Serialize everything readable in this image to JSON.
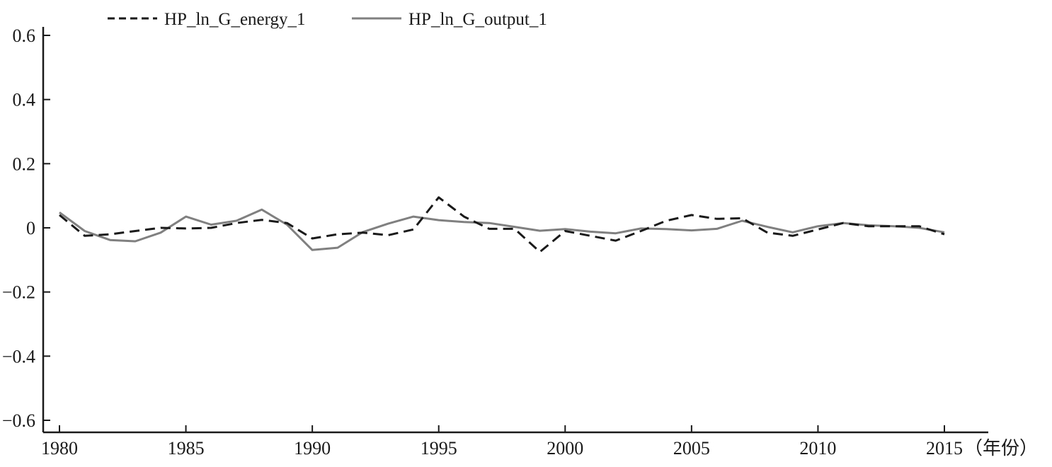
{
  "chart_data": {
    "type": "line",
    "x_unit_label": "（年份）",
    "x_ticks": [
      1980,
      1985,
      1990,
      1995,
      2000,
      2005,
      2010,
      2015
    ],
    "y_ticks": [
      "−0.6",
      "−0.4",
      "−0.2",
      "0",
      "0.2",
      "0.4",
      "0.6"
    ],
    "y_tick_values": [
      -0.6,
      -0.4,
      -0.2,
      0,
      0.2,
      0.4,
      0.6
    ],
    "xlim": [
      1980,
      2015
    ],
    "ylim": [
      -0.6,
      0.6
    ],
    "grid": false,
    "legend_position": "top-left",
    "x": [
      1980,
      1981,
      1982,
      1983,
      1984,
      1985,
      1986,
      1987,
      1988,
      1989,
      1990,
      1991,
      1992,
      1993,
      1994,
      1995,
      1996,
      1997,
      1998,
      1999,
      2000,
      2001,
      2002,
      2003,
      2004,
      2005,
      2006,
      2007,
      2008,
      2009,
      2010,
      2011,
      2012,
      2013,
      2014,
      2015
    ],
    "series": [
      {
        "name": "HP_ln_G_energy_1",
        "style": "dashed",
        "color": "#1a1a1a",
        "values": [
          0.04,
          -0.025,
          -0.02,
          -0.01,
          0.0,
          -0.002,
          0.0,
          0.015,
          0.025,
          0.015,
          -0.033,
          -0.02,
          -0.015,
          -0.023,
          -0.005,
          0.095,
          0.035,
          -0.003,
          -0.003,
          -0.075,
          -0.01,
          -0.025,
          -0.04,
          -0.01,
          0.022,
          0.04,
          0.028,
          0.03,
          -0.015,
          -0.025,
          -0.005,
          0.015,
          0.005,
          0.005,
          0.005,
          -0.02
        ]
      },
      {
        "name": "HP_ln_G_output_1",
        "style": "solid",
        "color": "#808080",
        "values": [
          0.048,
          -0.01,
          -0.038,
          -0.042,
          -0.015,
          0.035,
          0.01,
          0.022,
          0.057,
          0.01,
          -0.069,
          -0.062,
          -0.013,
          0.013,
          0.035,
          0.024,
          0.018,
          0.015,
          0.003,
          -0.009,
          -0.004,
          -0.012,
          -0.017,
          -0.002,
          -0.004,
          -0.008,
          -0.003,
          0.022,
          0.003,
          -0.014,
          0.005,
          0.015,
          0.008,
          0.005,
          0.0,
          -0.014
        ]
      }
    ]
  }
}
